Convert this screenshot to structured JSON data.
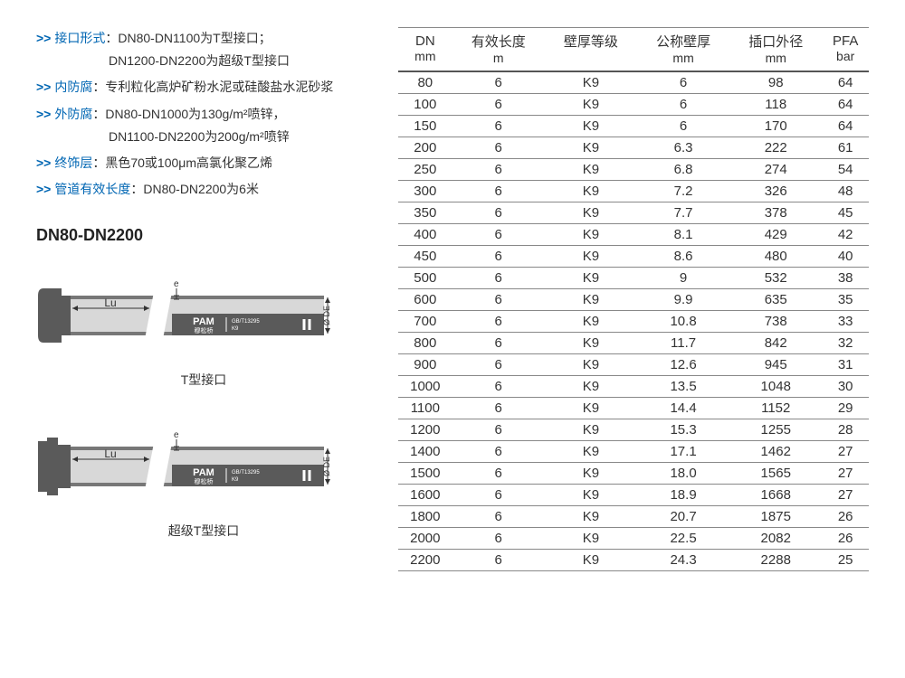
{
  "specs": [
    {
      "label": "接口形式",
      "value": "DN80-DN1100为T型接口；",
      "cont": "DN1200-DN2200为超级T型接口"
    },
    {
      "label": "内防腐",
      "value": "专利粒化高炉矿粉水泥或硅酸盐水泥砂浆"
    },
    {
      "label": "外防腐",
      "value": "DN80-DN1000为130g/m²喷锌，",
      "cont": "DN1100-DN2200为200g/m²喷锌"
    },
    {
      "label": "终饰层",
      "value": "黑色70或100μm高氯化聚乙烯"
    },
    {
      "label": "管道有效长度",
      "value": "DN80-DN2200为6米"
    }
  ],
  "heading": "DN80-DN2200",
  "pipes": [
    {
      "caption": "T型接口",
      "label_lu": "Lu",
      "label_de": "Ø DE",
      "label_e": "e",
      "brand1": "PAM",
      "brand2": "穆松桥",
      "spec": "GB/T13295",
      "spec2": "K9",
      "socket": "t"
    },
    {
      "caption": "超级T型接口",
      "label_lu": "Lu",
      "label_de": "Ø DE",
      "label_e": "e",
      "brand1": "PAM",
      "brand2": "穆松桥",
      "spec": "GB/T13295",
      "spec2": "K9",
      "socket": "super"
    }
  ],
  "table": {
    "headers": [
      {
        "l1": "DN",
        "l2": "mm"
      },
      {
        "l1": "有效长度",
        "l2": "m"
      },
      {
        "l1": "壁厚等级",
        "l2": ""
      },
      {
        "l1": "公称壁厚",
        "l2": "mm"
      },
      {
        "l1": "插口外径",
        "l2": "mm"
      },
      {
        "l1": "PFA",
        "l2": "bar"
      }
    ],
    "rows": [
      [
        "80",
        "6",
        "K9",
        "6",
        "98",
        "64"
      ],
      [
        "100",
        "6",
        "K9",
        "6",
        "118",
        "64"
      ],
      [
        "150",
        "6",
        "K9",
        "6",
        "170",
        "64"
      ],
      [
        "200",
        "6",
        "K9",
        "6.3",
        "222",
        "61"
      ],
      [
        "250",
        "6",
        "K9",
        "6.8",
        "274",
        "54"
      ],
      [
        "300",
        "6",
        "K9",
        "7.2",
        "326",
        "48"
      ],
      [
        "350",
        "6",
        "K9",
        "7.7",
        "378",
        "45"
      ],
      [
        "400",
        "6",
        "K9",
        "8.1",
        "429",
        "42"
      ],
      [
        "450",
        "6",
        "K9",
        "8.6",
        "480",
        "40"
      ],
      [
        "500",
        "6",
        "K9",
        "9",
        "532",
        "38"
      ],
      [
        "600",
        "6",
        "K9",
        "9.9",
        "635",
        "35"
      ],
      [
        "700",
        "6",
        "K9",
        "10.8",
        "738",
        "33"
      ],
      [
        "800",
        "6",
        "K9",
        "11.7",
        "842",
        "32"
      ],
      [
        "900",
        "6",
        "K9",
        "12.6",
        "945",
        "31"
      ],
      [
        "1000",
        "6",
        "K9",
        "13.5",
        "1048",
        "30"
      ],
      [
        "1100",
        "6",
        "K9",
        "14.4",
        "1152",
        "29"
      ],
      [
        "1200",
        "6",
        "K9",
        "15.3",
        "1255",
        "28"
      ],
      [
        "1400",
        "6",
        "K9",
        "17.1",
        "1462",
        "27"
      ],
      [
        "1500",
        "6",
        "K9",
        "18.0",
        "1565",
        "27"
      ],
      [
        "1600",
        "6",
        "K9",
        "18.9",
        "1668",
        "27"
      ],
      [
        "1800",
        "6",
        "K9",
        "20.7",
        "1875",
        "26"
      ],
      [
        "2000",
        "6",
        "K9",
        "22.5",
        "2082",
        "26"
      ],
      [
        "2200",
        "6",
        "K9",
        "24.3",
        "2288",
        "25"
      ]
    ]
  },
  "colors": {
    "accent": "#0066b3",
    "pipe_dark": "#5a5a5a",
    "pipe_light": "#d8d8d8",
    "pipe_mid": "#888888",
    "border": "#888888"
  }
}
